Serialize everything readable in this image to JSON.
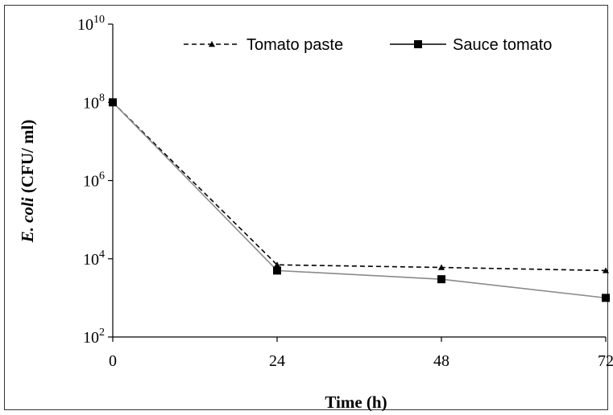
{
  "chart_data": {
    "type": "line",
    "x": [
      0,
      24,
      48,
      72
    ],
    "xticks": [
      "0",
      "24",
      "48",
      "72"
    ],
    "xlim": [
      0,
      72
    ],
    "ylim": [
      100,
      10000000000
    ],
    "yscale": "log",
    "yticks": [
      {
        "base": "10",
        "exp": "10",
        "value": 10000000000
      },
      {
        "base": "10",
        "exp": "8",
        "value": 100000000
      },
      {
        "base": "10",
        "exp": "6",
        "value": 1000000
      },
      {
        "base": "10",
        "exp": "4",
        "value": 10000
      },
      {
        "base": "10",
        "exp": "2",
        "value": 100
      }
    ],
    "xlabel": "Time (h)",
    "ylabel": {
      "italic": "E. coli",
      "rest": " (CFU/ ml)"
    },
    "legend_position": "top",
    "grid": false,
    "series": [
      {
        "name": "Tomato paste",
        "values": [
          100000000,
          7000,
          6000,
          5000
        ],
        "line": "dashed",
        "marker": "triangle",
        "color": "#000000"
      },
      {
        "name": "Sauce tomato",
        "values": [
          100000000,
          5000,
          3000,
          1000
        ],
        "line": "solid",
        "marker": "square",
        "color": "#000000"
      }
    ]
  }
}
